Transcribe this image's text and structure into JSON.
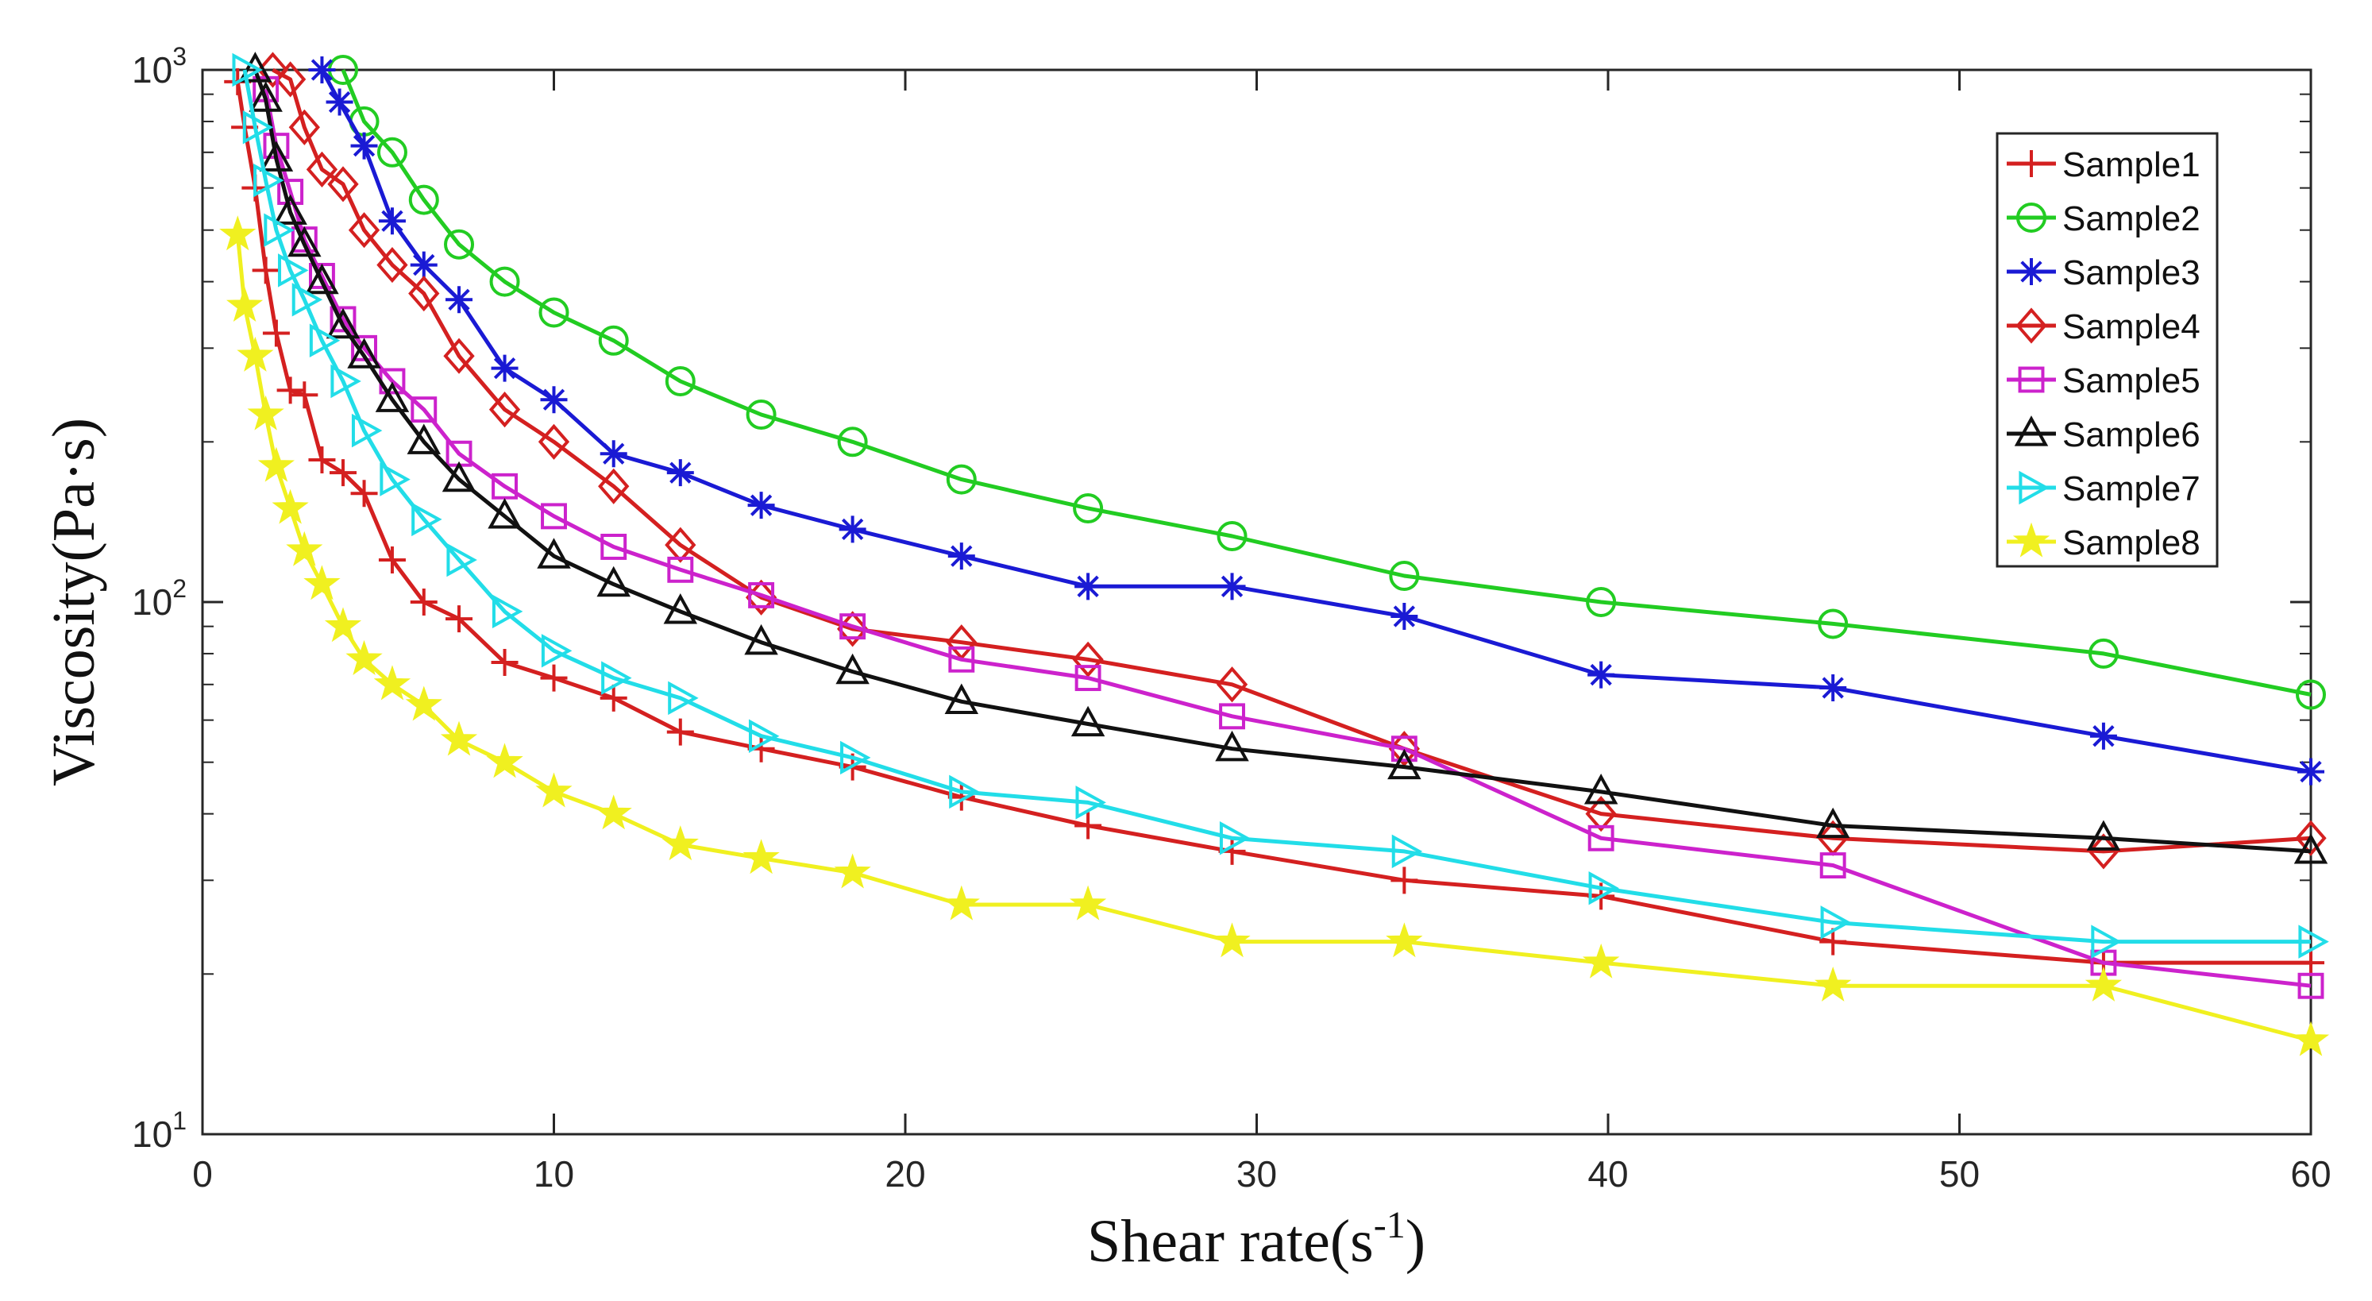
{
  "chart_data": {
    "type": "line",
    "xlabel": "Shear rate(s",
    "xlabel_sup": "-1",
    "xlabel_close": ")",
    "ylabel": "Viscosity(Pa·s)",
    "xlim": [
      0,
      60
    ],
    "ylim": [
      10,
      1000
    ],
    "yscale": "log",
    "x_ticks": [
      0,
      10,
      20,
      30,
      40,
      50,
      60
    ],
    "x_tick_labels": [
      "0",
      "10",
      "20",
      "30",
      "40",
      "50",
      "60"
    ],
    "y_ticks": [
      {
        "value": 10,
        "base": "10",
        "exp": "1"
      },
      {
        "value": 100,
        "base": "10",
        "exp": "2"
      },
      {
        "value": 1000,
        "base": "10",
        "exp": "3"
      }
    ],
    "grid": false,
    "legend_position": "top-right",
    "series": [
      {
        "name": "Sample1",
        "color": "#d42020",
        "marker": "plus",
        "x": [
          1.0,
          1.2,
          1.5,
          1.8,
          2.1,
          2.5,
          2.9,
          3.4,
          4.0,
          4.6,
          5.4,
          6.3,
          7.3,
          8.6,
          10.0,
          11.7,
          13.6,
          15.9,
          18.5,
          21.6,
          25.2,
          29.3,
          34.2,
          39.8,
          46.4,
          54.1,
          60.0
        ],
        "y": [
          950,
          780,
          600,
          420,
          320,
          250,
          245,
          185,
          175,
          160,
          120,
          100,
          93,
          77,
          72,
          66,
          57,
          53,
          49,
          43,
          38,
          34,
          30,
          28,
          23,
          21,
          21
        ]
      },
      {
        "name": "Sample2",
        "color": "#22cc22",
        "marker": "circle",
        "x": [
          4.0,
          4.6,
          5.4,
          6.3,
          7.3,
          8.6,
          10.0,
          11.7,
          13.6,
          15.9,
          18.5,
          21.6,
          25.2,
          29.3,
          34.2,
          39.8,
          46.4,
          54.1,
          60.0
        ],
        "y": [
          1000,
          800,
          700,
          570,
          470,
          400,
          350,
          310,
          260,
          225,
          200,
          170,
          150,
          133,
          112,
          100,
          91,
          80,
          67
        ]
      },
      {
        "name": "Sample3",
        "color": "#1a1ad4",
        "marker": "asterisk",
        "x": [
          3.4,
          3.9,
          4.6,
          5.4,
          6.3,
          7.3,
          8.6,
          10.0,
          11.7,
          13.6,
          15.9,
          18.5,
          21.6,
          25.2,
          29.3,
          34.2,
          39.8,
          46.4,
          54.1,
          60.0
        ],
        "y": [
          1000,
          870,
          720,
          520,
          430,
          370,
          275,
          240,
          190,
          175,
          152,
          137,
          122,
          107,
          107,
          94,
          73,
          69,
          56,
          48
        ]
      },
      {
        "name": "Sample4",
        "color": "#d42020",
        "marker": "diamond",
        "x": [
          2.0,
          2.5,
          2.9,
          3.4,
          4.0,
          4.6,
          5.4,
          6.3,
          7.3,
          8.6,
          10.0,
          11.7,
          13.6,
          15.9,
          18.5,
          21.6,
          25.2,
          29.3,
          34.2,
          39.8,
          46.4,
          54.1,
          60.0
        ],
        "y": [
          1000,
          960,
          780,
          650,
          610,
          500,
          430,
          380,
          290,
          230,
          200,
          165,
          128,
          102,
          89,
          84,
          78,
          70,
          53,
          40,
          36,
          34,
          36
        ]
      },
      {
        "name": "Sample5",
        "color": "#cc22cc",
        "marker": "square",
        "x": [
          1.8,
          2.1,
          2.5,
          2.9,
          3.4,
          4.0,
          4.6,
          5.4,
          6.3,
          7.3,
          8.6,
          10.0,
          11.7,
          13.6,
          15.9,
          18.5,
          21.6,
          25.2,
          29.3,
          34.2,
          39.8,
          46.4,
          54.1,
          60.0
        ],
        "y": [
          920,
          720,
          590,
          480,
          410,
          340,
          300,
          260,
          230,
          190,
          165,
          145,
          127,
          115,
          103,
          90,
          78,
          72,
          61,
          53,
          36,
          32,
          21,
          19
        ]
      },
      {
        "name": "Sample6",
        "color": "#111111",
        "marker": "triangle-up",
        "x": [
          1.5,
          1.8,
          2.1,
          2.5,
          2.9,
          3.4,
          4.0,
          4.6,
          5.4,
          6.3,
          7.3,
          8.6,
          10.0,
          11.7,
          13.6,
          15.9,
          18.5,
          21.6,
          25.2,
          29.3,
          34.2,
          39.8,
          46.4,
          54.1,
          60.0
        ],
        "y": [
          1000,
          880,
          680,
          540,
          470,
          400,
          330,
          290,
          240,
          200,
          170,
          145,
          122,
          108,
          96,
          84,
          74,
          65,
          59,
          53,
          49,
          44,
          38,
          36,
          34
        ]
      },
      {
        "name": "Sample7",
        "color": "#22dde8",
        "marker": "triangle-right",
        "x": [
          1.2,
          1.5,
          1.8,
          2.1,
          2.5,
          2.9,
          3.4,
          4.0,
          4.6,
          5.4,
          6.3,
          7.3,
          8.6,
          10.0,
          11.7,
          13.6,
          15.9,
          18.5,
          21.6,
          25.2,
          29.3,
          34.2,
          39.8,
          46.4,
          54.1,
          60.0
        ],
        "y": [
          1000,
          780,
          620,
          500,
          420,
          370,
          310,
          260,
          210,
          170,
          143,
          120,
          96,
          81,
          72,
          66,
          56,
          51,
          44,
          42,
          36,
          34,
          29,
          25,
          23,
          23
        ]
      },
      {
        "name": "Sample8",
        "color": "#f0f020",
        "marker": "star",
        "x": [
          1.0,
          1.2,
          1.5,
          1.8,
          2.1,
          2.5,
          2.9,
          3.4,
          4.0,
          4.6,
          5.4,
          6.3,
          7.3,
          8.6,
          10.0,
          11.7,
          13.6,
          15.9,
          18.5,
          21.6,
          25.2,
          29.3,
          34.2,
          39.8,
          46.4,
          54.1,
          60.0
        ],
        "y": [
          490,
          360,
          290,
          225,
          180,
          150,
          125,
          108,
          90,
          78,
          70,
          64,
          55,
          50,
          44,
          40,
          35,
          33,
          31,
          27,
          27,
          23,
          23,
          21,
          19,
          19,
          15
        ]
      }
    ]
  }
}
